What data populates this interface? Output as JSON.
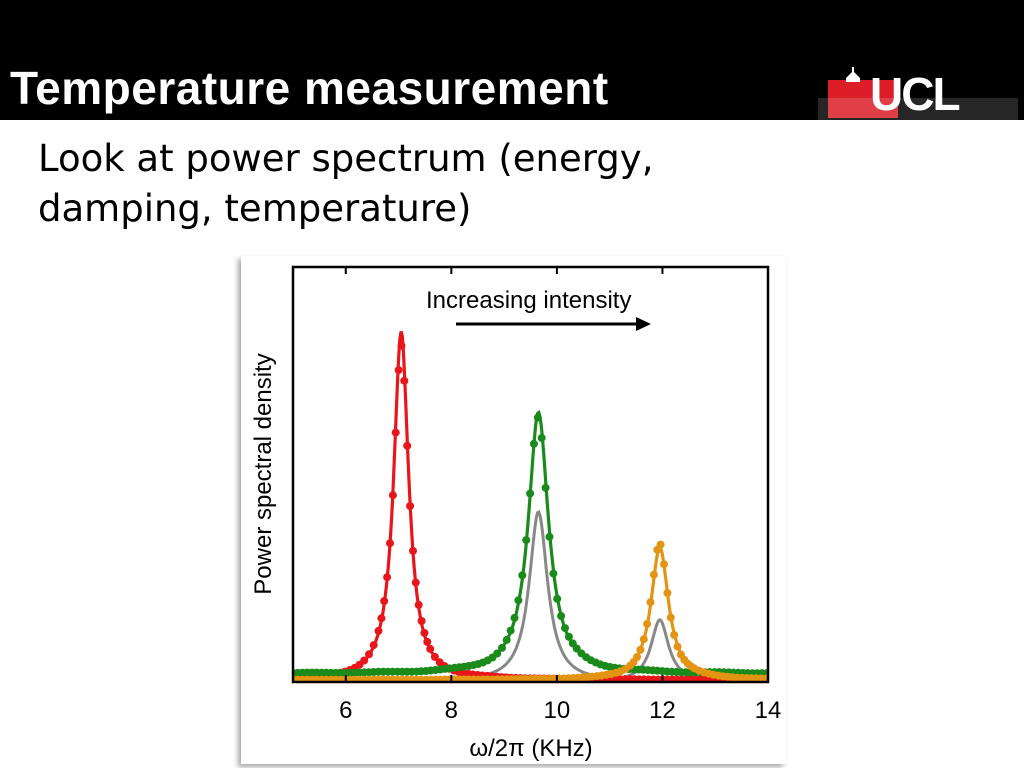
{
  "slide": {
    "title": "Temperature measurement",
    "subtitle_lines": [
      "Look at power spectrum (energy,",
      "damping, temperature)"
    ],
    "logo_text": "UCL"
  },
  "colors": {
    "header_bg": "#000000",
    "logo_red": "#e8202a"
  },
  "chart_data": {
    "type": "line",
    "xlabel": "ω/2π (KHz)",
    "ylabel": "Power spectral density",
    "xlim": [
      5,
      14
    ],
    "ylim": [
      0,
      1.0
    ],
    "xticks": [
      "6",
      "8",
      "10",
      "12",
      "14"
    ],
    "xtick_values": [
      6,
      8,
      10,
      12,
      14
    ],
    "annotation": "Increasing intensity",
    "series": [
      {
        "color": "#e8161b",
        "style": "line+points",
        "center": 7.05,
        "peak": 0.84,
        "width": 0.17,
        "baseline": 0.005
      },
      {
        "color": "#1a8a1a",
        "style": "line+points",
        "center": 9.65,
        "peak": 0.63,
        "width": 0.23,
        "baseline": 0.02
      },
      {
        "color": "#888888",
        "style": "line",
        "center": 9.65,
        "peak": 0.41,
        "width": 0.21,
        "baseline": 0.0
      },
      {
        "color": "#e39412",
        "style": "line+points",
        "center": 11.95,
        "peak": 0.32,
        "width": 0.2,
        "baseline": 0.005
      },
      {
        "color": "#888888",
        "style": "line",
        "center": 11.95,
        "peak": 0.15,
        "width": 0.2,
        "baseline": 0.0
      }
    ]
  }
}
